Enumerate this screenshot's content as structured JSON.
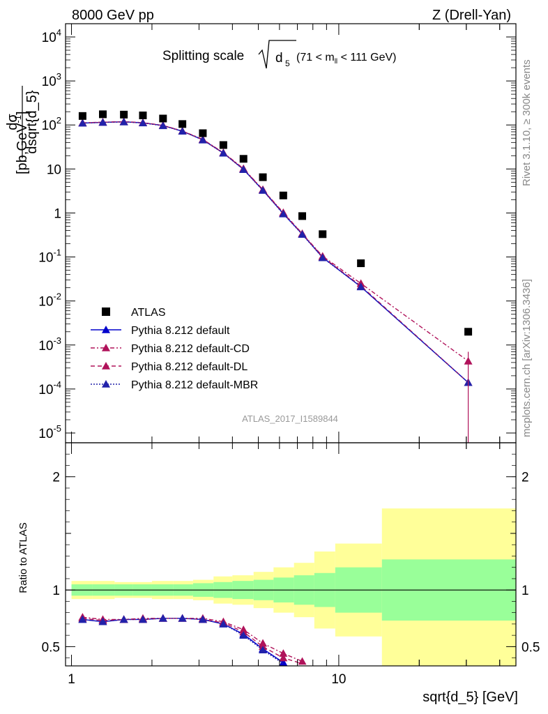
{
  "header": {
    "left": "8000 GeV pp",
    "right": "Z (Drell-Yan)"
  },
  "side_labels": {
    "version": "Rivet 3.1.10, ≥ 300k events",
    "source": "mcplots.cern.ch [arXiv:1306.3436]"
  },
  "main_plot": {
    "title_prefix": "Splitting scale",
    "title_var": "d",
    "title_var_sub": "5",
    "title_cut": "(71 < m",
    "title_cut_sub": "ll",
    "title_cut_end": " < 111 GeV)",
    "ylabel_num": "dσ",
    "ylabel_den": "dsqrt{d_5}",
    "ylabel_unit_open": " [pb,GeV",
    "ylabel_unit_exp": "-1",
    "ylabel_unit_close": "]",
    "analysis_id": "ATLAS_2017_I1589844"
  },
  "ratio_plot": {
    "ylabel": "Ratio to ATLAS"
  },
  "xaxis": {
    "label": "sqrt{d_5} [GeV]",
    "tick_labels": [
      "1",
      "10"
    ]
  },
  "colors": {
    "data": "#000000",
    "default": "#0000cc",
    "cd": "#b0125a",
    "dl": "#b0125a",
    "mbr": "#2222aa",
    "band_inner": "#99ff99",
    "band_outer": "#ffff99"
  },
  "chart_data": {
    "type": "scatter",
    "x_scale": "log",
    "y_scale": "log",
    "xlim": [
      0.95,
      46
    ],
    "ylim": [
      6e-06,
      20000
    ],
    "ratio_ylim": [
      0.33,
      2.3
    ],
    "ratio_ticks": [
      "0.5",
      "1",
      "2"
    ],
    "ytick_labels": [
      "10^-5",
      "10^-4",
      "10^-3",
      "10^-2",
      "10^-1",
      "1",
      "10",
      "10^2",
      "10^3",
      "10^4"
    ],
    "x": [
      1.1,
      1.31,
      1.57,
      1.85,
      2.2,
      2.6,
      3.1,
      3.7,
      4.4,
      5.2,
      6.2,
      7.3,
      8.7,
      12.1,
      30.5
    ],
    "x_edges": [
      1.0,
      1.2,
      1.45,
      1.7,
      2.0,
      2.4,
      2.85,
      3.4,
      4.0,
      4.8,
      5.7,
      6.8,
      8.1,
      9.7,
      14.5,
      46
    ],
    "series": [
      {
        "name": "ATLAS",
        "values": [
          160,
          175,
          172,
          165,
          140,
          105,
          65,
          35,
          17,
          6.5,
          2.5,
          0.85,
          0.33,
          0.072,
          0.002
        ],
        "band_inner": [
          0.05,
          0.05,
          0.05,
          0.05,
          0.05,
          0.05,
          0.06,
          0.07,
          0.08,
          0.09,
          0.11,
          0.13,
          0.15,
          0.2,
          0.27
        ],
        "band_outer": [
          0.08,
          0.08,
          0.07,
          0.07,
          0.08,
          0.08,
          0.09,
          0.12,
          0.13,
          0.16,
          0.2,
          0.24,
          0.34,
          0.41,
          0.72
        ]
      },
      {
        "name": "Pythia 8.212 default",
        "values": [
          110,
          115,
          118,
          112,
          97,
          72,
          46,
          23,
          9.8,
          3.3,
          0.97,
          0.33,
          0.098,
          0.021,
          0.00014
        ],
        "ratio": [
          0.74,
          0.72,
          0.74,
          0.74,
          0.75,
          0.75,
          0.74,
          0.7,
          0.61,
          0.48,
          0.36
        ]
      },
      {
        "name": "Pythia 8.212 default-CD",
        "values": [
          112,
          116,
          119,
          113,
          98,
          73,
          47,
          23.5,
          10.2,
          3.4,
          1.02,
          0.34,
          0.104,
          0.025,
          0.00043
        ],
        "ratio": [
          0.76,
          0.74,
          0.74,
          0.75,
          0.75,
          0.75,
          0.75,
          0.72,
          0.65,
          0.53,
          0.44,
          0.37
        ]
      },
      {
        "name": "Pythia 8.212 default-DL",
        "values": [
          111,
          115,
          118,
          112,
          97,
          72.5,
          46,
          23,
          10,
          3.35,
          1.0,
          0.335,
          0.1,
          0.022,
          0.00014
        ],
        "ratio": [
          0.75,
          0.73,
          0.74,
          0.74,
          0.75,
          0.75,
          0.74,
          0.71,
          0.63,
          0.5,
          0.4,
          0.35
        ]
      },
      {
        "name": "Pythia 8.212 default-MBR",
        "values": [
          110,
          114,
          117,
          111,
          96,
          72,
          45.5,
          22.8,
          9.7,
          3.25,
          0.95,
          0.325,
          0.096,
          0.021,
          0.00014
        ],
        "ratio": [
          0.74,
          0.72,
          0.74,
          0.74,
          0.75,
          0.75,
          0.74,
          0.7,
          0.6,
          0.47,
          0.35
        ]
      }
    ]
  }
}
